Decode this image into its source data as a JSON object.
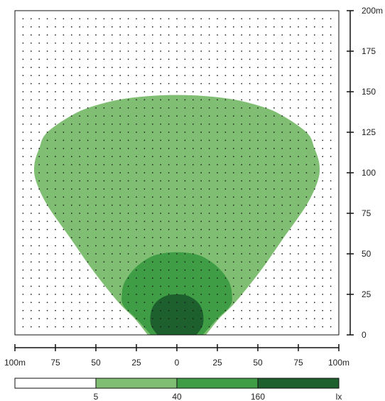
{
  "chart_data": {
    "type": "isolux-contour",
    "title": "",
    "x_unit": "m",
    "y_unit": "m",
    "x_axis": {
      "range": [
        -100,
        100
      ],
      "ticks": [
        -100,
        -75,
        -50,
        -25,
        0,
        25,
        50,
        75,
        100
      ],
      "tick_labels": [
        "100m",
        "75",
        "50",
        "25",
        "0",
        "25",
        "50",
        "75",
        "100m"
      ]
    },
    "y_axis": {
      "range": [
        0,
        200
      ],
      "ticks": [
        0,
        25,
        50,
        75,
        100,
        125,
        150,
        175,
        200
      ],
      "tick_labels": [
        "0",
        "25",
        "50",
        "75",
        "100",
        "125",
        "150",
        "175",
        "200m"
      ]
    },
    "grid": "dots",
    "grid_spacing_m": 5,
    "levels": [
      {
        "lux": 5,
        "color": "#80bf73",
        "contour": [
          [
            -18,
            0
          ],
          [
            -26,
            10
          ],
          [
            -36,
            20
          ],
          [
            -52,
            40
          ],
          [
            -66,
            60
          ],
          [
            -80,
            80
          ],
          [
            -87,
            95
          ],
          [
            -88,
            105
          ],
          [
            -85,
            115
          ],
          [
            -80,
            125
          ],
          [
            -62,
            137
          ],
          [
            -45,
            143
          ],
          [
            -30,
            146
          ],
          [
            -15,
            147.5
          ],
          [
            0,
            148
          ],
          [
            15,
            147.5
          ],
          [
            30,
            146
          ],
          [
            45,
            143
          ],
          [
            62,
            137
          ],
          [
            80,
            125
          ],
          [
            85,
            115
          ],
          [
            88,
            105
          ],
          [
            87,
            95
          ],
          [
            80,
            80
          ],
          [
            66,
            60
          ],
          [
            52,
            40
          ],
          [
            36,
            20
          ],
          [
            26,
            10
          ],
          [
            18,
            0
          ]
        ]
      },
      {
        "lux": 40,
        "color": "#3f9e45",
        "contour": [
          [
            -16,
            0
          ],
          [
            -25,
            10
          ],
          [
            -33,
            18
          ],
          [
            -34,
            25
          ],
          [
            -32,
            33
          ],
          [
            -25,
            42
          ],
          [
            -14,
            49
          ],
          [
            0,
            51
          ],
          [
            14,
            49
          ],
          [
            25,
            42
          ],
          [
            32,
            33
          ],
          [
            34,
            25
          ],
          [
            33,
            18
          ],
          [
            25,
            10
          ],
          [
            16,
            0
          ]
        ]
      },
      {
        "lux": 160,
        "color": "#1d5f2d",
        "contour": [
          [
            -12,
            0
          ],
          [
            -16,
            6
          ],
          [
            -16,
            14
          ],
          [
            -13,
            20
          ],
          [
            -7,
            24
          ],
          [
            0,
            25
          ],
          [
            7,
            24
          ],
          [
            13,
            20
          ],
          [
            16,
            14
          ],
          [
            16,
            6
          ],
          [
            12,
            0
          ]
        ]
      }
    ],
    "legend": {
      "placement": "bottom",
      "colors": [
        "#ffffff",
        "#80bf73",
        "#3f9e45",
        "#1d5f2d"
      ],
      "labels": [
        "5",
        "40",
        "160",
        "lx"
      ]
    }
  }
}
